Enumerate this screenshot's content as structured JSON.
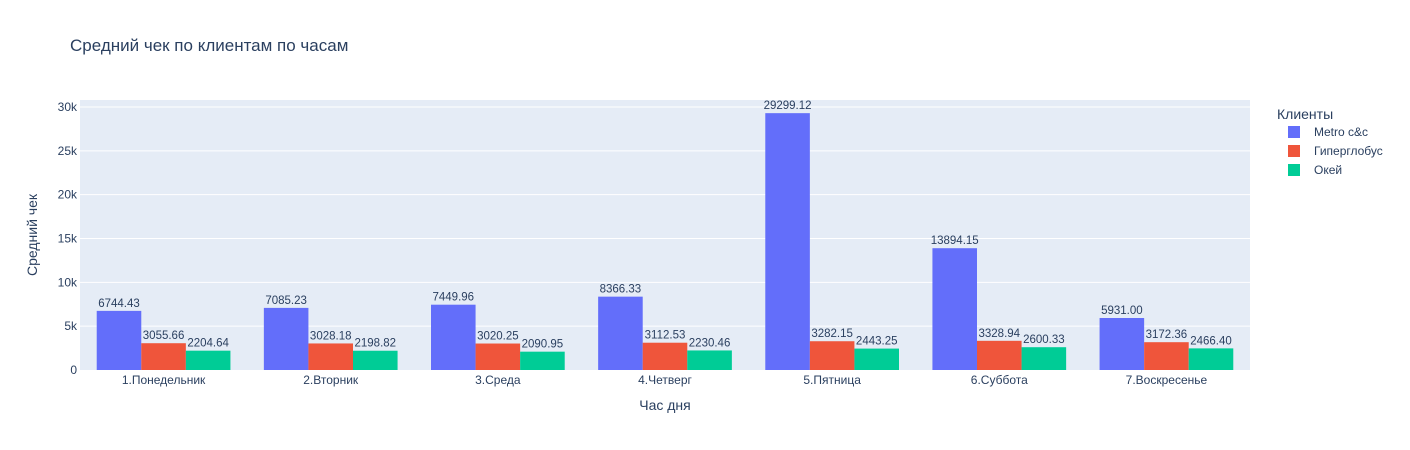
{
  "chart_data": {
    "type": "bar",
    "title": "Средний чек по клиентам по часам",
    "xlabel": "Час дня",
    "ylabel": "Средний чек",
    "ylim": [
      0,
      30800
    ],
    "yticks": [
      0,
      5000,
      10000,
      15000,
      20000,
      25000,
      30000
    ],
    "ytick_labels": [
      "0",
      "5k",
      "10k",
      "15k",
      "20k",
      "25k",
      "30k"
    ],
    "categories": [
      "1.Понедельник",
      "2.Вторник",
      "3.Среда",
      "4.Четверг",
      "5.Пятница",
      "6.Суббота",
      "7.Воскресенье"
    ],
    "legend_title": "Клиенты",
    "legend_position": "top-right",
    "grid": true,
    "series": [
      {
        "name": "Metro c&c",
        "color": "#636efa",
        "values": [
          6744.43,
          7085.23,
          7449.96,
          8366.33,
          29299.12,
          13894.15,
          5931.0
        ],
        "labels": [
          "6744.43",
          "7085.23",
          "7449.96",
          "8366.33",
          "29299.12",
          "13894.15",
          "5931.00"
        ]
      },
      {
        "name": "Гиперглобус",
        "color": "#ef553b",
        "values": [
          3055.66,
          3028.18,
          3020.25,
          3112.53,
          3282.15,
          3328.94,
          3172.36
        ],
        "labels": [
          "3055.66",
          "3028.18",
          "3020.25",
          "3112.53",
          "3282.15",
          "3328.94",
          "3172.36"
        ]
      },
      {
        "name": "Окей",
        "color": "#00cc96",
        "values": [
          2204.64,
          2198.82,
          2090.95,
          2230.46,
          2443.25,
          2600.33,
          2466.4
        ],
        "labels": [
          "2204.64",
          "2198.82",
          "2090.95",
          "2230.46",
          "2443.25",
          "2600.33",
          "2466.40"
        ]
      }
    ]
  }
}
